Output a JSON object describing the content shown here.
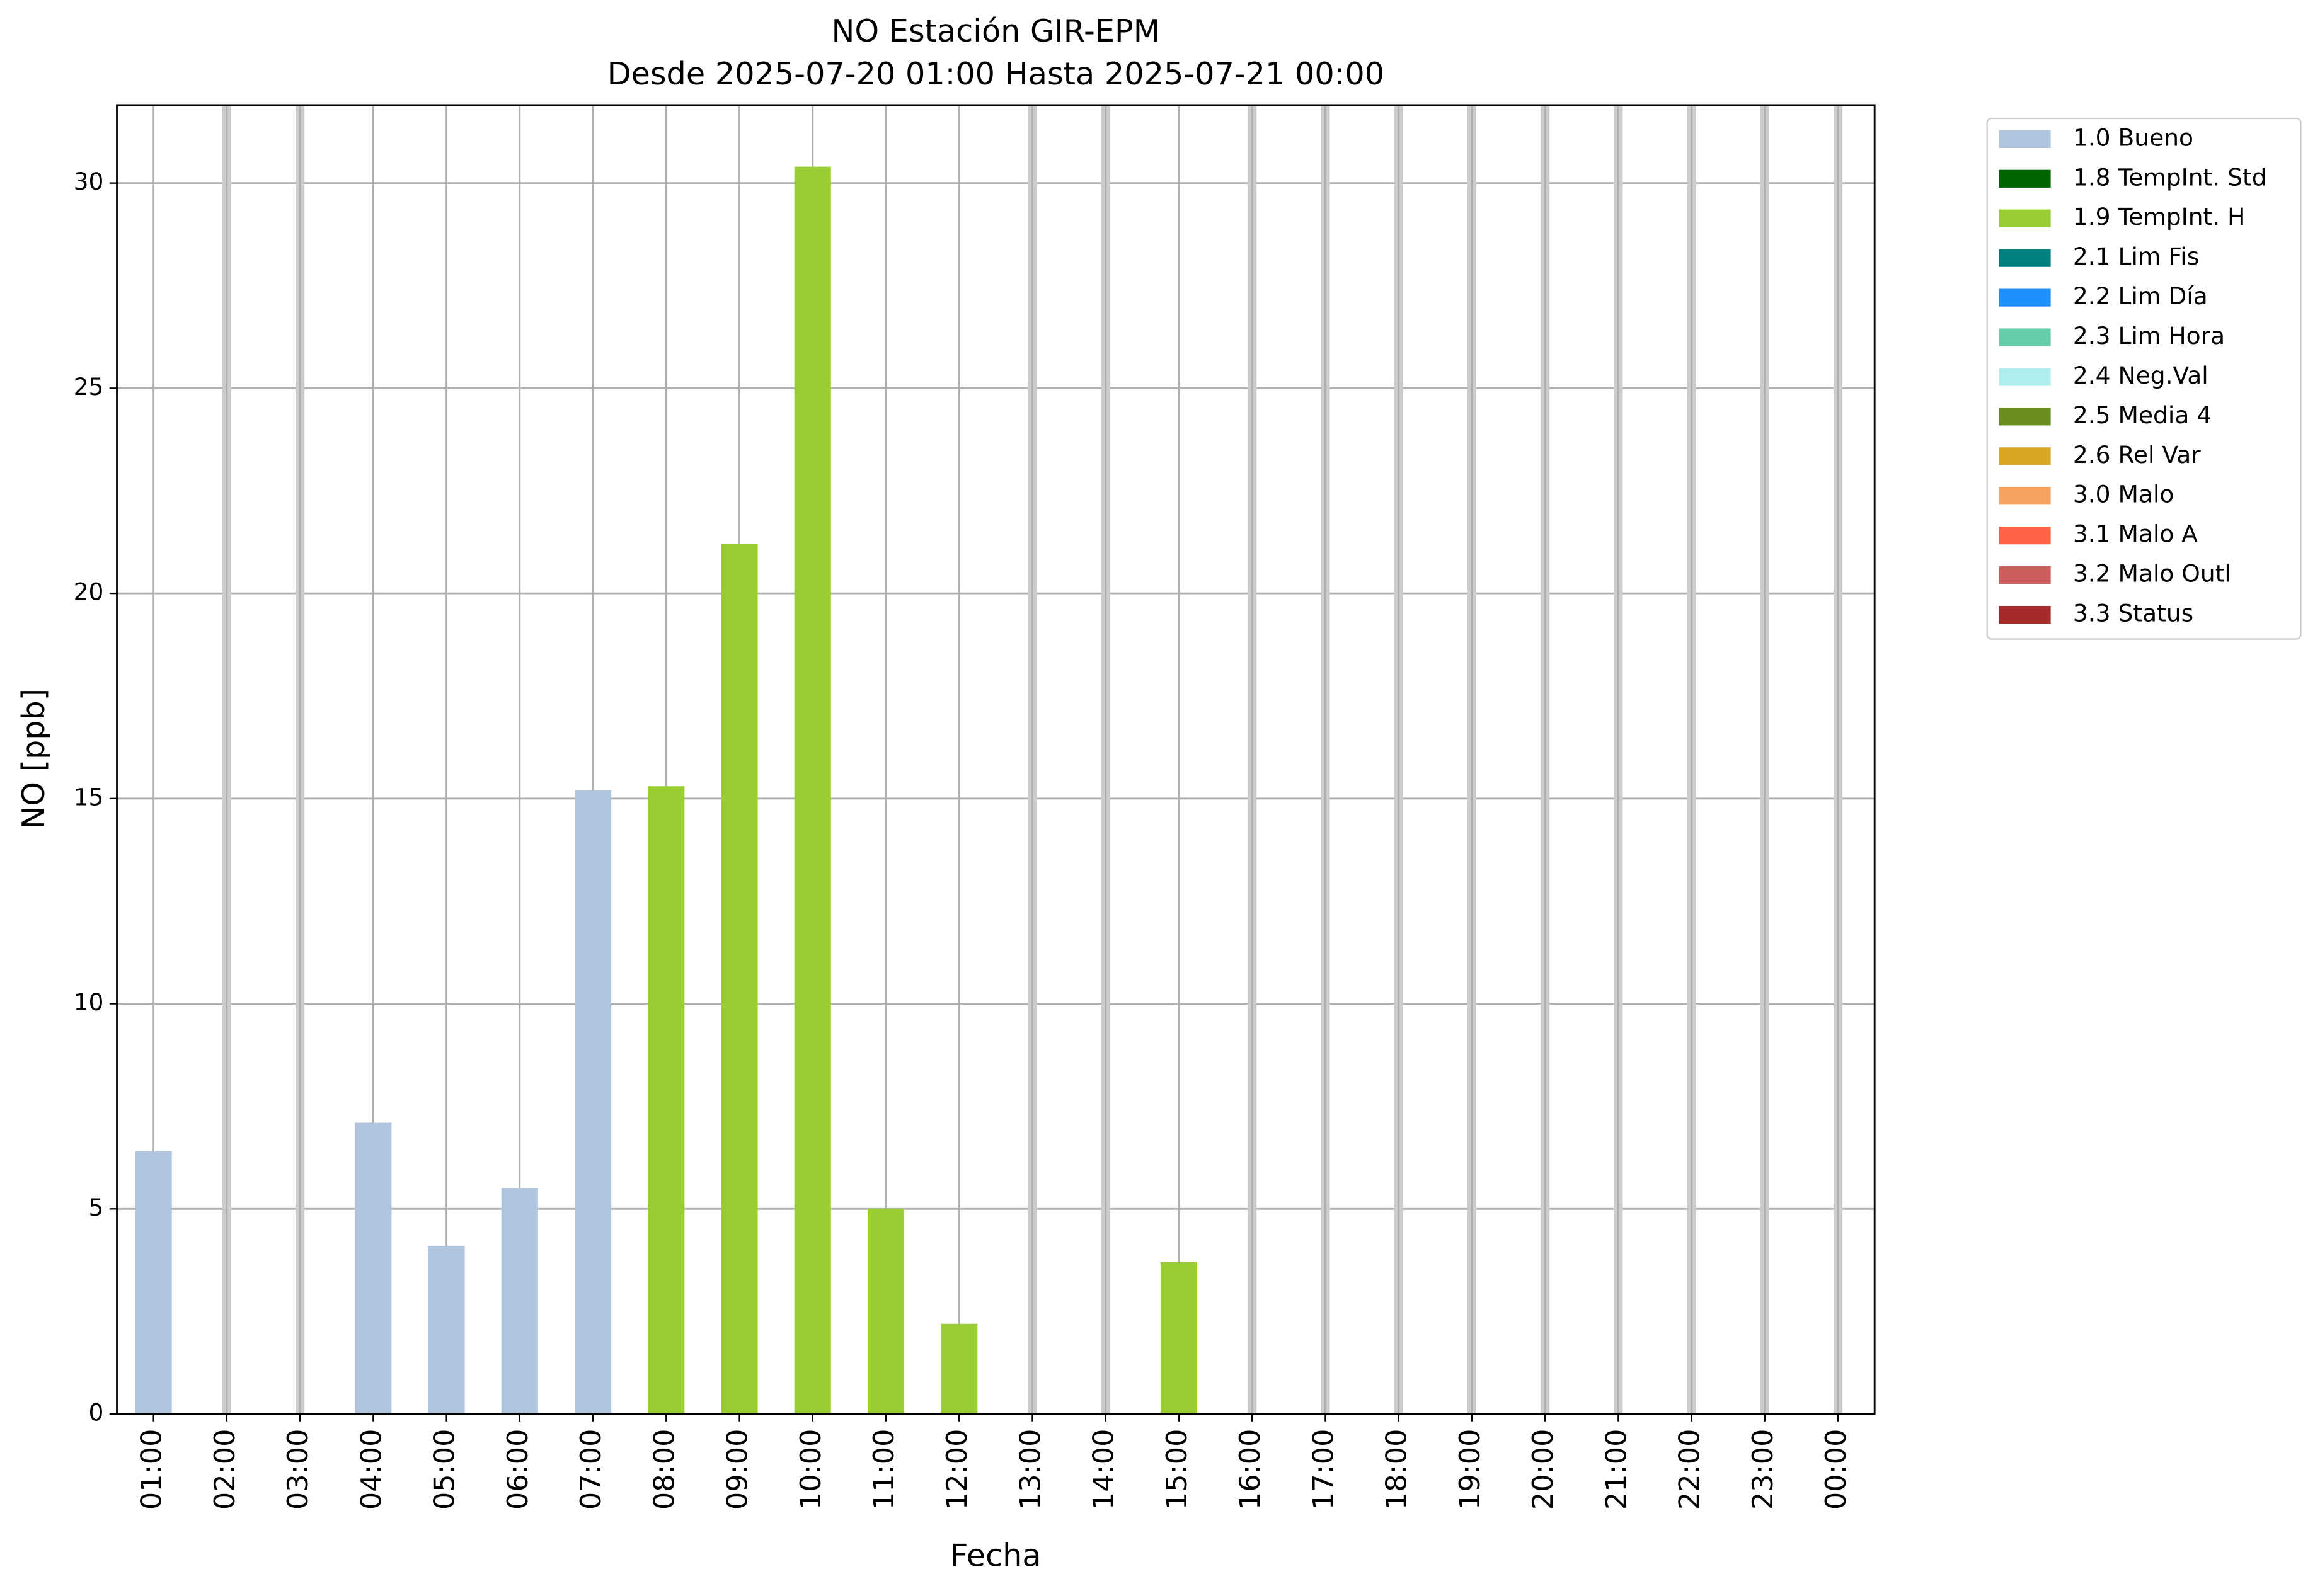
{
  "chart_data": {
    "type": "bar",
    "stacked": true,
    "title": "NO Estación GIR-EPM\nDesde 2025-07-20 01:00 Hasta 2025-07-21 00:00",
    "x_label": "Fecha",
    "y_label": "NO [ppb]",
    "categories": [
      "01:00",
      "02:00",
      "03:00",
      "04:00",
      "05:00",
      "06:00",
      "07:00",
      "08:00",
      "09:00",
      "10:00",
      "11:00",
      "12:00",
      "13:00",
      "14:00",
      "15:00",
      "16:00",
      "17:00",
      "18:00",
      "19:00",
      "20:00",
      "21:00",
      "22:00",
      "23:00",
      "00:00"
    ],
    "series": [
      {
        "name": "1.0 Bueno",
        "color": "#b0c4de",
        "values": [
          6.4,
          null,
          null,
          7.1,
          4.1,
          5.5,
          15.2,
          null,
          null,
          null,
          null,
          null,
          null,
          null,
          null,
          null,
          null,
          null,
          null,
          null,
          null,
          null,
          null,
          null
        ]
      },
      {
        "name": "1.8 TempInt. Std",
        "color": "#006400",
        "values": [
          null,
          null,
          null,
          null,
          null,
          null,
          null,
          null,
          null,
          null,
          null,
          null,
          null,
          null,
          null,
          null,
          null,
          null,
          null,
          null,
          null,
          null,
          null,
          null
        ]
      },
      {
        "name": "1.9 TempInt. H",
        "color": "#9acd32",
        "values": [
          null,
          null,
          null,
          null,
          null,
          null,
          null,
          15.3,
          21.2,
          30.4,
          5.0,
          2.2,
          null,
          null,
          3.7,
          null,
          null,
          null,
          null,
          null,
          null,
          null,
          null,
          null
        ]
      },
      {
        "name": "2.1 Lim Fis",
        "color": "#008080",
        "values": [
          null,
          null,
          null,
          null,
          null,
          null,
          null,
          null,
          null,
          null,
          null,
          null,
          null,
          null,
          null,
          null,
          null,
          null,
          null,
          null,
          null,
          null,
          null,
          null
        ]
      },
      {
        "name": "2.2 Lim Día",
        "color": "#1e90ff",
        "values": [
          null,
          null,
          null,
          null,
          null,
          null,
          null,
          null,
          null,
          null,
          null,
          null,
          null,
          null,
          null,
          null,
          null,
          null,
          null,
          null,
          null,
          null,
          null,
          null
        ]
      },
      {
        "name": "2.3 Lim Hora",
        "color": "#66cdaa",
        "values": [
          null,
          null,
          null,
          null,
          null,
          null,
          null,
          null,
          null,
          null,
          null,
          null,
          null,
          null,
          null,
          null,
          null,
          null,
          null,
          null,
          null,
          null,
          null,
          null
        ]
      },
      {
        "name": "2.4 Neg.Val",
        "color": "#afeeee",
        "values": [
          null,
          null,
          null,
          null,
          null,
          null,
          null,
          null,
          null,
          null,
          null,
          null,
          null,
          null,
          null,
          null,
          null,
          null,
          null,
          null,
          null,
          null,
          null,
          null
        ]
      },
      {
        "name": "2.5 Media 4",
        "color": "#6b8e23",
        "values": [
          null,
          null,
          null,
          null,
          null,
          null,
          null,
          null,
          null,
          null,
          null,
          null,
          null,
          null,
          null,
          null,
          null,
          null,
          null,
          null,
          null,
          null,
          null,
          null
        ]
      },
      {
        "name": "2.6 Rel Var",
        "color": "#daa520",
        "values": [
          null,
          null,
          null,
          null,
          null,
          null,
          null,
          null,
          null,
          null,
          null,
          null,
          null,
          null,
          null,
          null,
          null,
          null,
          null,
          null,
          null,
          null,
          null,
          null
        ]
      },
      {
        "name": "3.0 Malo",
        "color": "#f4a460",
        "values": [
          null,
          null,
          null,
          null,
          null,
          null,
          null,
          null,
          null,
          null,
          null,
          null,
          null,
          null,
          null,
          null,
          null,
          null,
          null,
          null,
          null,
          null,
          null,
          null
        ]
      },
      {
        "name": "3.1 Malo A",
        "color": "#ff6347",
        "values": [
          null,
          null,
          null,
          null,
          null,
          null,
          null,
          null,
          null,
          null,
          null,
          null,
          null,
          null,
          null,
          null,
          null,
          null,
          null,
          null,
          null,
          null,
          null,
          null
        ]
      },
      {
        "name": "3.2 Malo Outl",
        "color": "#cd5c5c",
        "values": [
          null,
          null,
          null,
          null,
          null,
          null,
          null,
          null,
          null,
          null,
          null,
          null,
          null,
          null,
          null,
          null,
          null,
          null,
          null,
          null,
          null,
          null,
          null,
          null
        ]
      },
      {
        "name": "3.3 Status",
        "color": "#a52a2a",
        "values": [
          null,
          null,
          null,
          null,
          null,
          null,
          null,
          null,
          null,
          null,
          null,
          null,
          null,
          null,
          null,
          null,
          null,
          null,
          null,
          null,
          null,
          null,
          null,
          null
        ]
      }
    ],
    "ylim": [
      0,
      31.9
    ],
    "yticks": [
      0,
      5,
      10,
      15,
      20,
      25,
      30
    ],
    "grid": true,
    "legend": "outside-right"
  }
}
